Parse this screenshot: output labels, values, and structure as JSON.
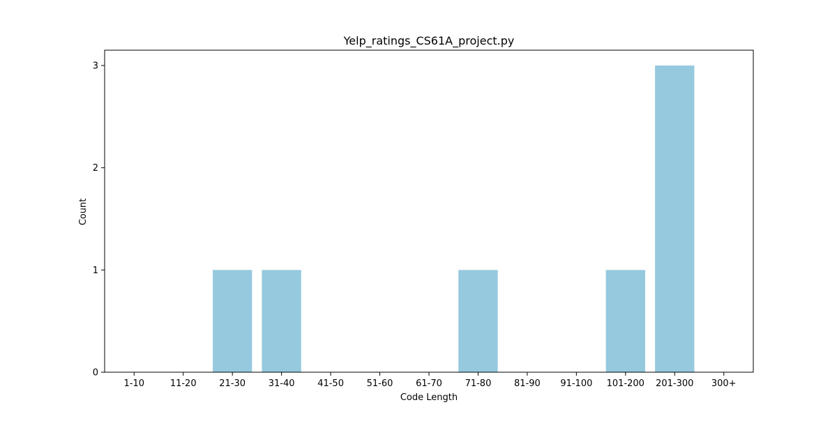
{
  "chart_data": {
    "type": "bar",
    "title": "Yelp_ratings_CS61A_project.py",
    "xlabel": "Code Length",
    "ylabel": "Count",
    "categories": [
      "1-10",
      "11-20",
      "21-30",
      "31-40",
      "41-50",
      "51-60",
      "61-70",
      "71-80",
      "81-90",
      "91-100",
      "101-200",
      "201-300",
      "300+"
    ],
    "values": [
      0,
      0,
      1,
      1,
      0,
      0,
      0,
      1,
      0,
      0,
      1,
      3,
      0
    ],
    "ylim": [
      0,
      3.15
    ],
    "yticks": [
      0,
      1,
      2,
      3
    ],
    "bar_color": "#96c9de",
    "grid": false,
    "legend": false
  }
}
